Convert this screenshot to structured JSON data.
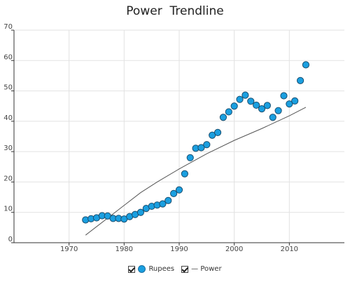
{
  "chart_data": {
    "type": "scatter",
    "title": "Power  Trendline",
    "xlim": [
      1960,
      2020
    ],
    "ylim": [
      0,
      70
    ],
    "xticks": [
      1970,
      1980,
      1990,
      2000,
      2010
    ],
    "yticks": [
      0,
      10,
      20,
      30,
      40,
      50,
      60,
      70
    ],
    "grid": true,
    "legend_placement": "bottom-center",
    "series": [
      {
        "name": "Rupees",
        "type": "scatter",
        "color": "#1a9fe0",
        "x": [
          1973,
          1974,
          1975,
          1976,
          1977,
          1978,
          1979,
          1980,
          1981,
          1982,
          1983,
          1984,
          1985,
          1986,
          1987,
          1988,
          1989,
          1990,
          1991,
          1992,
          1993,
          1994,
          1995,
          1996,
          1997,
          1998,
          1999,
          2000,
          2001,
          2002,
          2003,
          2004,
          2005,
          2006,
          2007,
          2008,
          2009,
          2010,
          2011,
          2012,
          2013
        ],
        "y": [
          7.5,
          7.9,
          8.2,
          8.9,
          8.8,
          8.0,
          8.0,
          7.8,
          8.6,
          9.3,
          10.0,
          11.3,
          12.0,
          12.4,
          12.8,
          13.9,
          16.2,
          17.4,
          22.7,
          28.0,
          31.1,
          31.3,
          32.3,
          35.4,
          36.3,
          41.3,
          43.1,
          45.0,
          47.2,
          48.6,
          46.6,
          45.3,
          44.1,
          45.2,
          41.3,
          43.5,
          48.4,
          45.7,
          46.7,
          53.4,
          58.6
        ]
      },
      {
        "name": "— Power",
        "type": "line",
        "color": "#555555",
        "x": [
          1973,
          1975,
          1978,
          1980,
          1983,
          1986,
          1990,
          1995,
          2000,
          2005,
          2010,
          2013
        ],
        "y": [
          2.5,
          5.3,
          9.5,
          12.3,
          16.5,
          20.0,
          24.3,
          29.3,
          33.7,
          37.6,
          41.8,
          44.6
        ]
      }
    ]
  },
  "legend": {
    "items": [
      {
        "label": "Rupees"
      },
      {
        "label": "— Power"
      }
    ]
  }
}
